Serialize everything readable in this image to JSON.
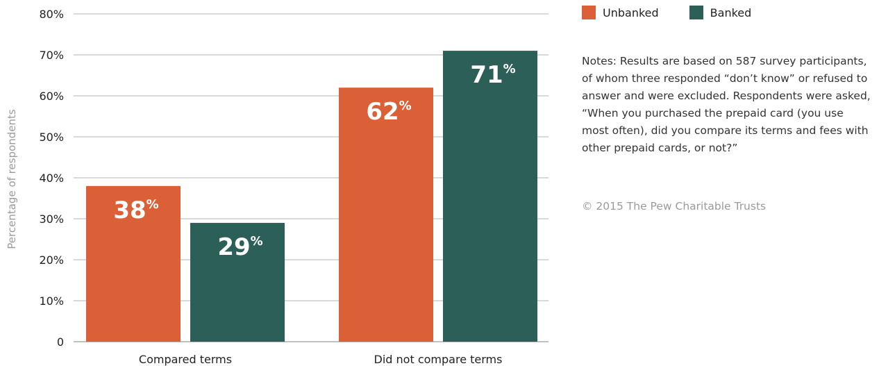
{
  "colors": {
    "unbanked": "#DB5F37",
    "banked": "#2C5F58",
    "gridline": "#9a9a9a"
  },
  "chart_data": {
    "type": "bar",
    "categories": [
      "Compared terms",
      "Did not compare terms"
    ],
    "series": [
      {
        "name": "Unbanked",
        "values": [
          38,
          62
        ]
      },
      {
        "name": "Banked",
        "values": [
          29,
          71
        ]
      }
    ],
    "value_labels": [
      [
        "38",
        "62"
      ],
      [
        "29",
        "71"
      ]
    ],
    "value_suffix": "%",
    "ylabel": "Percentage of respondents",
    "ylim": [
      0,
      80
    ],
    "yticks": [
      0,
      10,
      20,
      30,
      40,
      50,
      60,
      70,
      80
    ],
    "ytick_labels": [
      "0",
      "10%",
      "20%",
      "30%",
      "40%",
      "50%",
      "60%",
      "70%",
      "80%"
    ],
    "grid": true,
    "legend_position": "top-right"
  },
  "notes": "Notes: Results are based on 587 survey participants, of whom three responded “don’t know” or refused to answer and were excluded. Respondents were asked, “When you purchased the prepaid card (you use most often), did you compare its terms and fees with other prepaid cards, or not?”",
  "copyright": "© 2015 The Pew Charitable Trusts"
}
